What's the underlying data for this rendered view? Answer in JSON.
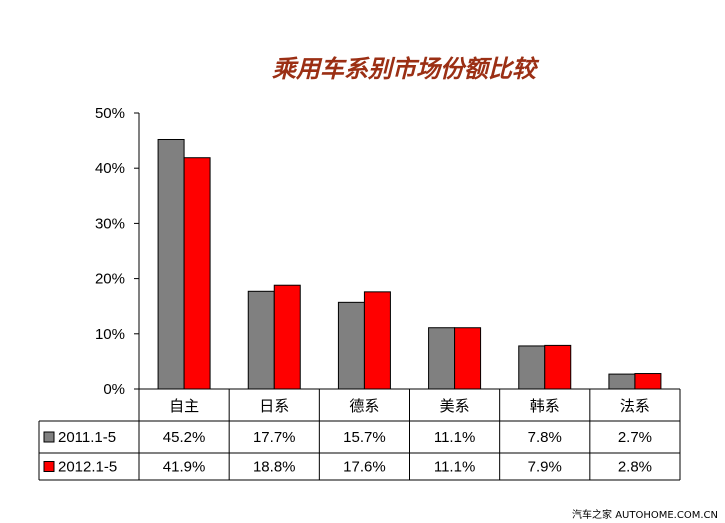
{
  "chart_data": {
    "type": "bar",
    "title": "乘用车系别市场份额比较",
    "categories": [
      "自主",
      "日系",
      "德系",
      "美系",
      "韩系",
      "法系"
    ],
    "series": [
      {
        "name": "2011.1-5",
        "values": [
          45.2,
          17.7,
          15.7,
          11.1,
          7.8,
          2.7
        ],
        "labels": [
          "45.2%",
          "17.7%",
          "15.7%",
          "11.1%",
          "7.8%",
          "2.7%"
        ],
        "color": "#808080"
      },
      {
        "name": "2012.1-5",
        "values": [
          41.9,
          18.8,
          17.6,
          11.1,
          7.9,
          2.8
        ],
        "labels": [
          "41.9%",
          "18.8%",
          "17.6%",
          "11.1%",
          "7.9%",
          "2.8%"
        ],
        "color": "#ff0000"
      }
    ],
    "yticks": [
      "0%",
      "10%",
      "20%",
      "30%",
      "40%",
      "50%"
    ],
    "ylim": [
      0,
      50
    ],
    "grid": false,
    "legend": "data-table"
  },
  "watermark": "汽车之家 AUTOHOME.COM.CN"
}
